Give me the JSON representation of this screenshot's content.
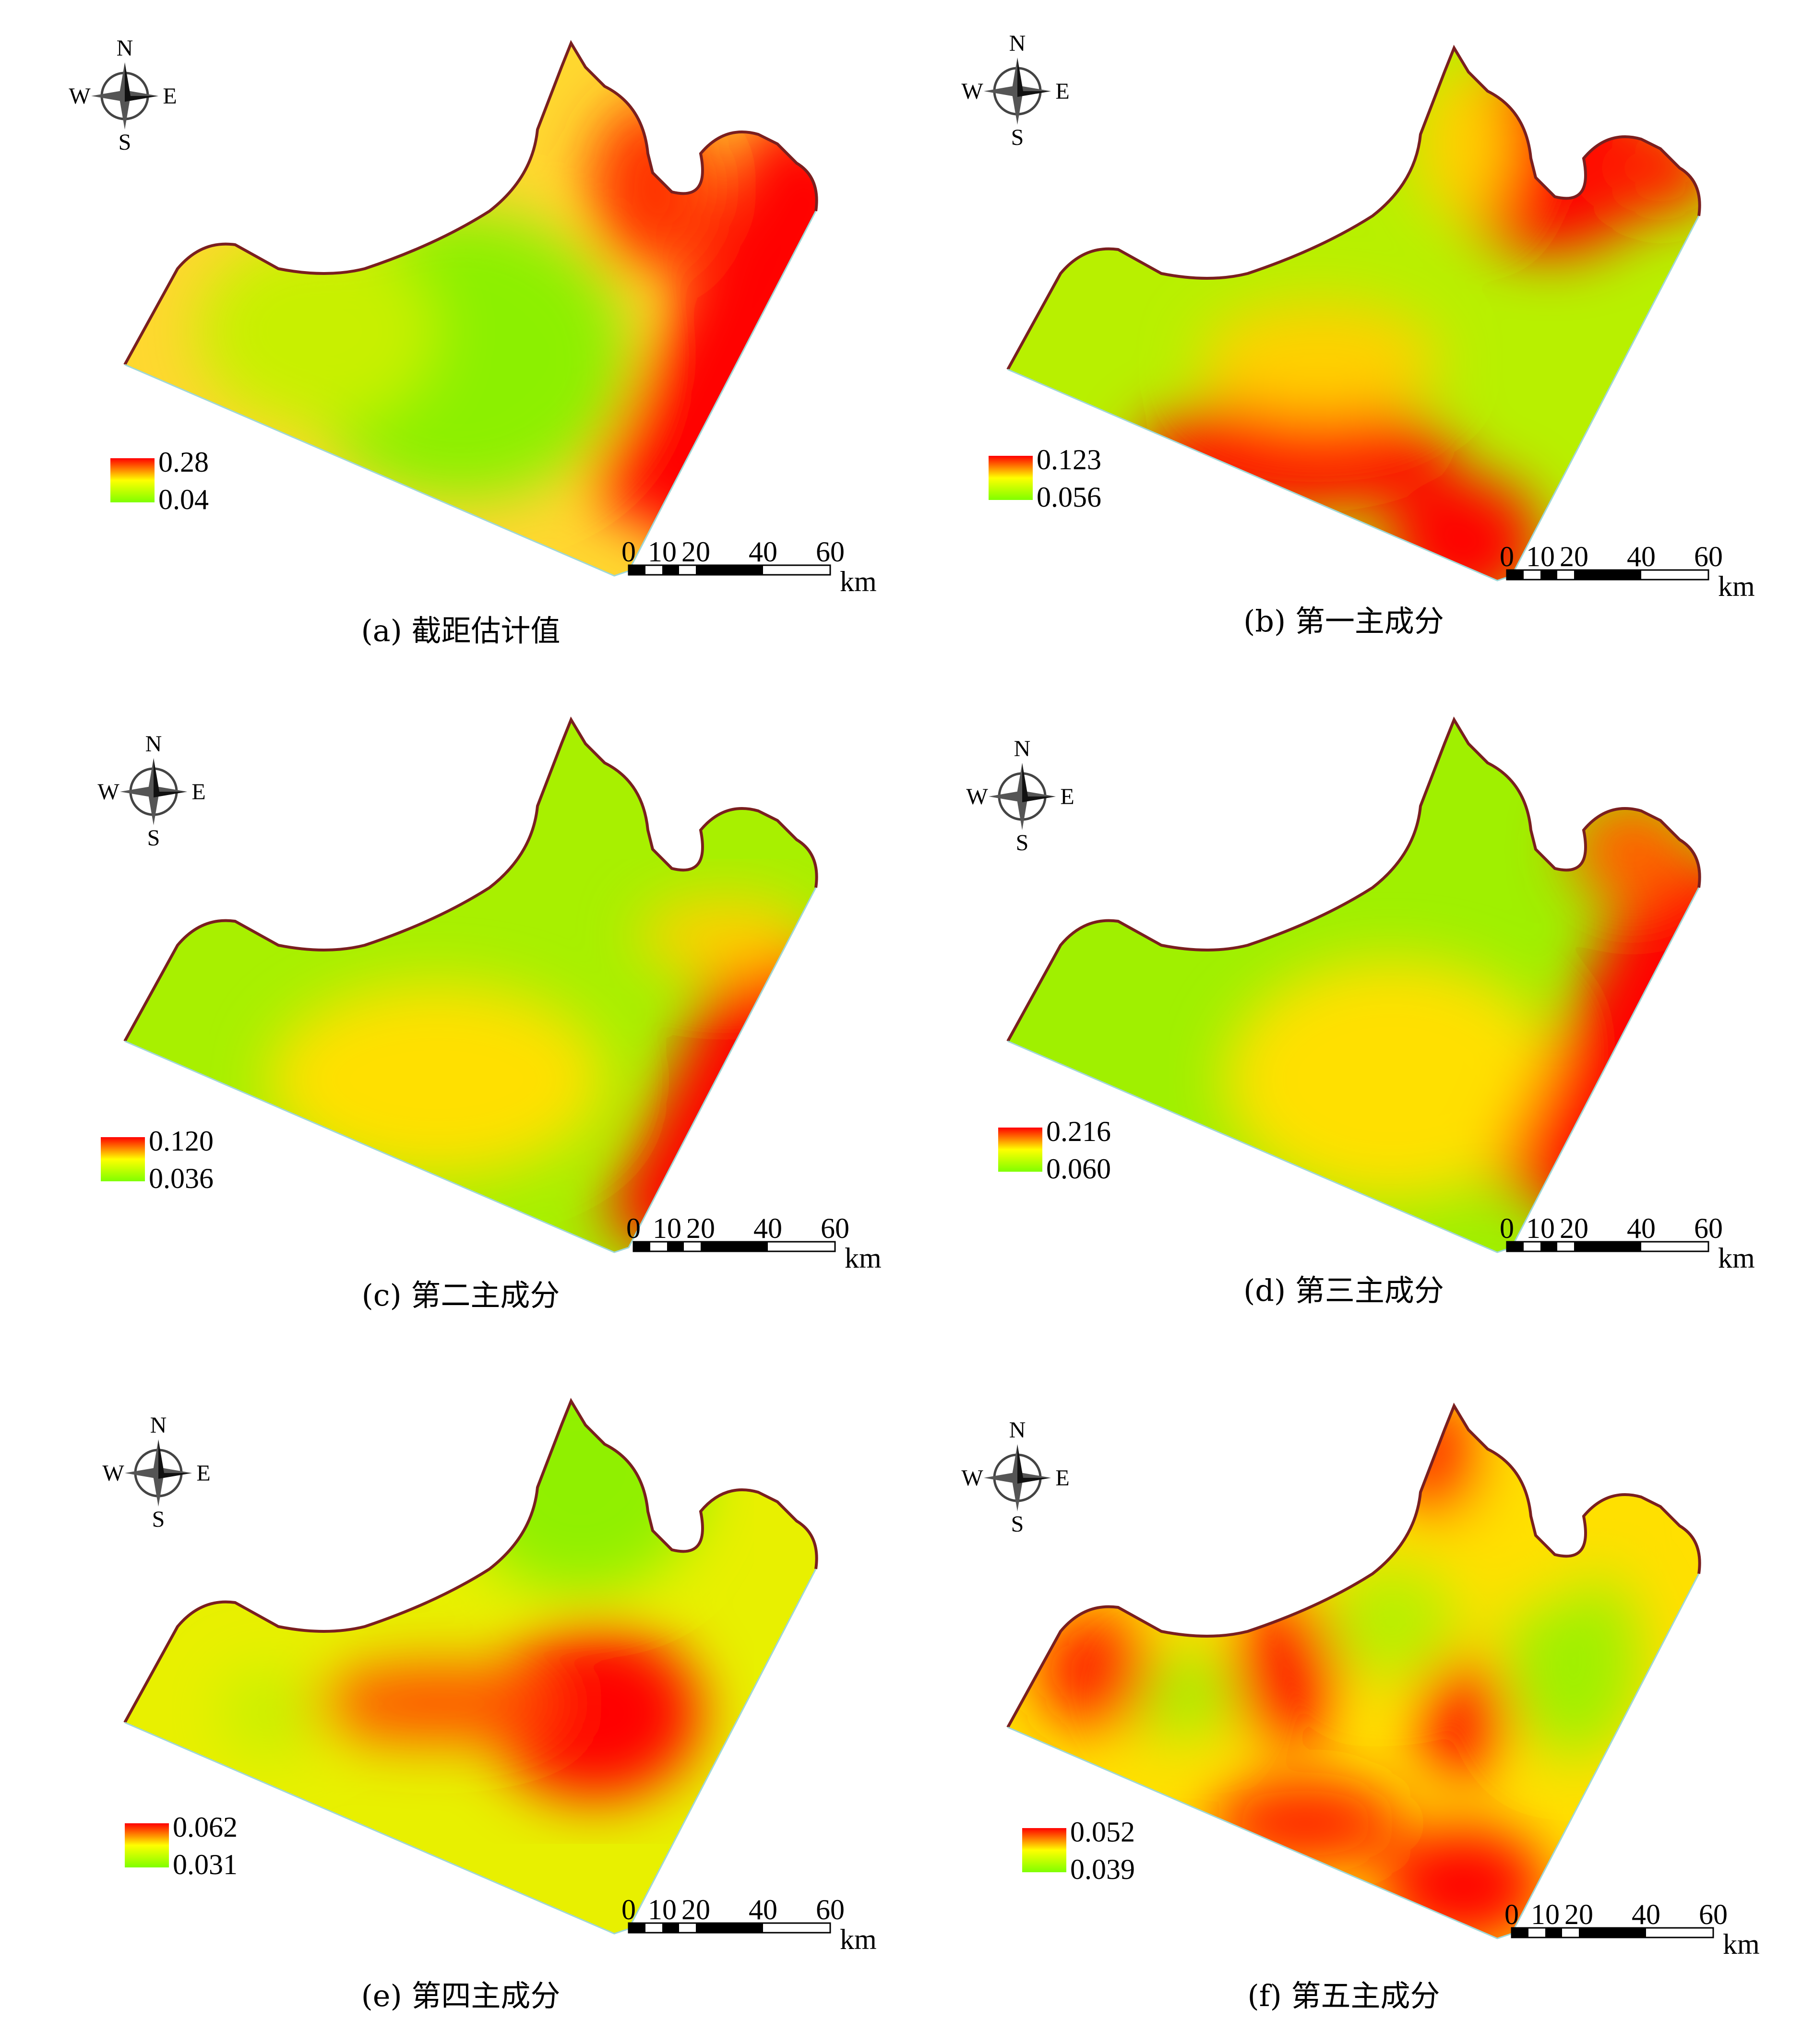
{
  "compass": {
    "n": "N",
    "s": "S",
    "e": "E",
    "w": "W"
  },
  "scale": {
    "ticks": [
      "0",
      "10",
      "20",
      "40",
      "60"
    ],
    "unit": "km"
  },
  "colors": {
    "high": "#ff0000",
    "mid": "#ffff00",
    "low": "#7fff00",
    "coast": "#7a1f1f"
  },
  "panels": [
    {
      "caption": "(a) 截距估计值",
      "legend_max": "0.28",
      "legend_min": "0.04"
    },
    {
      "caption": "(b) 第一主成分",
      "legend_max": "0.123",
      "legend_min": "0.056"
    },
    {
      "caption": "(c) 第二主成分",
      "legend_max": "0.120",
      "legend_min": "0.036"
    },
    {
      "caption": "(d) 第三主成分",
      "legend_max": "0.216",
      "legend_min": "0.060"
    },
    {
      "caption": "(e) 第四主成分",
      "legend_max": "0.062",
      "legend_min": "0.031"
    },
    {
      "caption": "(f) 第五主成分",
      "legend_max": "0.052",
      "legend_min": "0.039"
    }
  ]
}
